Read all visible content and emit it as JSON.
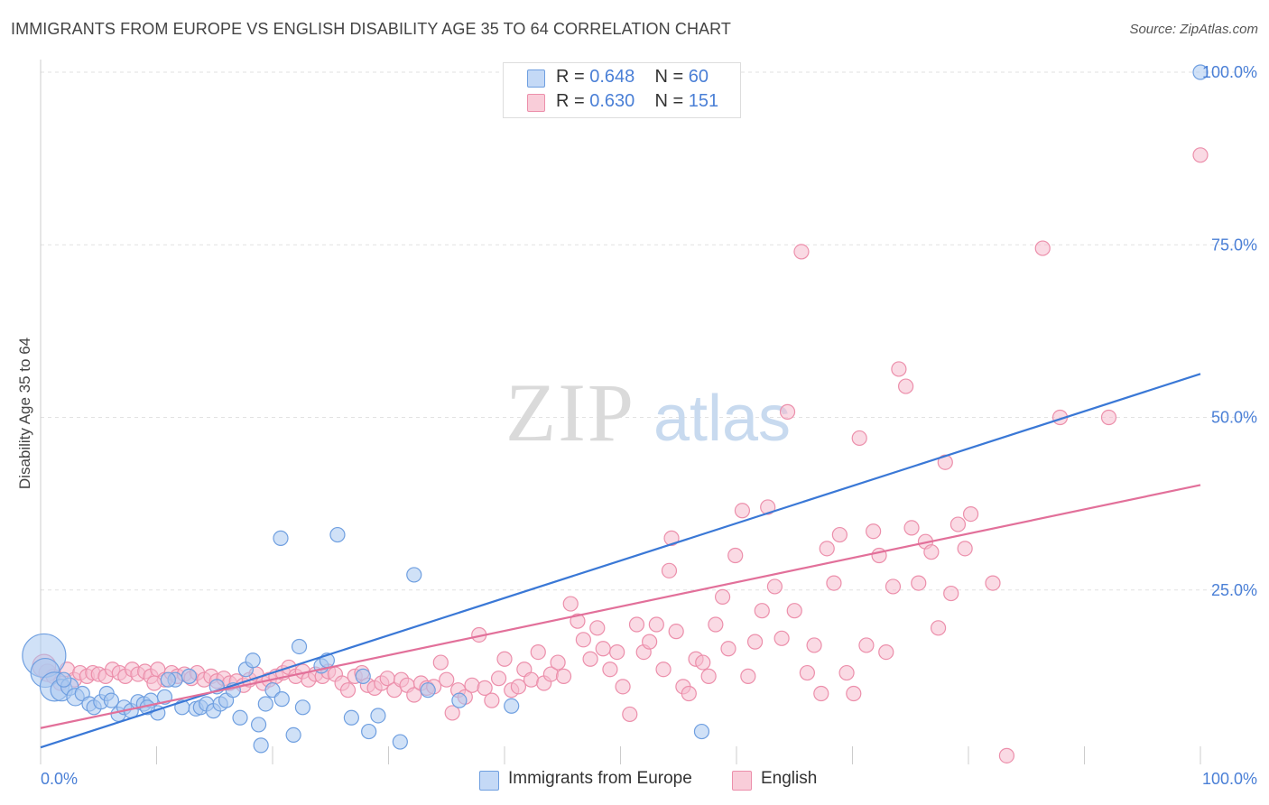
{
  "header": {
    "title": "IMMIGRANTS FROM EUROPE VS ENGLISH DISABILITY AGE 35 TO 64 CORRELATION CHART",
    "source": "Source: ZipAtlas.com"
  },
  "watermark": {
    "zip": "ZIP",
    "atlas": "atlas"
  },
  "legend_top": {
    "rows": [
      {
        "r_label": "R = ",
        "r_value": "0.648",
        "n_label": "N = ",
        "n_value": "60"
      },
      {
        "r_label": "R = ",
        "r_value": "0.630",
        "n_label": "N = ",
        "n_value": "151"
      }
    ]
  },
  "legend_bottom": {
    "items": [
      {
        "label": "Immigrants from Europe"
      },
      {
        "label": "English"
      }
    ]
  },
  "colors": {
    "blue_fill": "#aac8f0",
    "blue_stroke": "#6f9fe0",
    "blue_line": "#3a78d6",
    "pink_fill": "#f6bccd",
    "pink_stroke": "#ec8fab",
    "pink_line": "#e2709a",
    "tick_label": "#4a7fd6",
    "grid": "#e2e2e2"
  },
  "chart_data": {
    "type": "scatter",
    "title": "IMMIGRANTS FROM EUROPE VS ENGLISH DISABILITY AGE 35 TO 64 CORRELATION CHART",
    "xlabel": "",
    "ylabel": "Disability Age 35 to 64",
    "xlim": [
      0,
      100
    ],
    "ylim": [
      0,
      100
    ],
    "x_tick_labels": [
      "0.0%",
      "100.0%"
    ],
    "y_ticks": [
      25,
      50,
      75,
      100
    ],
    "y_tick_labels": [
      "25.0%",
      "50.0%",
      "75.0%",
      "100.0%"
    ],
    "grid": true,
    "legend_position": "top-center",
    "series": [
      {
        "name": "Immigrants from Europe",
        "r": 0.648,
        "n": 60,
        "trendline": {
          "x": [
            0,
            100
          ],
          "y": [
            2.2,
            56.3
          ]
        },
        "points": [
          [
            0.3,
            15.5,
            3
          ],
          [
            0.4,
            13.0,
            2
          ],
          [
            1.2,
            11.0,
            2
          ],
          [
            1.8,
            10.5,
            1.5
          ],
          [
            2.5,
            11.0,
            1.2
          ],
          [
            3.0,
            9.5,
            1.2
          ],
          [
            3.6,
            10.0,
            1
          ],
          [
            4.2,
            8.5,
            1
          ],
          [
            4.6,
            8.0,
            1
          ],
          [
            5.2,
            8.8,
            1
          ],
          [
            5.7,
            10.0,
            1
          ],
          [
            6.1,
            9.0,
            1
          ],
          [
            6.7,
            7.0,
            1
          ],
          [
            7.2,
            8.0,
            1
          ],
          [
            7.8,
            7.5,
            1
          ],
          [
            8.4,
            8.8,
            1
          ],
          [
            8.9,
            8.5,
            1
          ],
          [
            9.5,
            9.0,
            1
          ],
          [
            10.1,
            7.2,
            1
          ],
          [
            10.7,
            9.5,
            1
          ],
          [
            11.6,
            12.0,
            1
          ],
          [
            12.2,
            8.0,
            1
          ],
          [
            12.8,
            12.5,
            1
          ],
          [
            13.4,
            7.8,
            1
          ],
          [
            13.8,
            8.0,
            1
          ],
          [
            14.3,
            8.5,
            1
          ],
          [
            14.9,
            7.5,
            1
          ],
          [
            15.5,
            8.5,
            1
          ],
          [
            16.0,
            9.0,
            1
          ],
          [
            16.6,
            10.5,
            1
          ],
          [
            17.2,
            6.5,
            1
          ],
          [
            17.7,
            13.5,
            1
          ],
          [
            18.3,
            14.8,
            1
          ],
          [
            18.8,
            5.5,
            1
          ],
          [
            19.0,
            2.5,
            1
          ],
          [
            19.4,
            8.5,
            1
          ],
          [
            20.0,
            10.5,
            1
          ],
          [
            20.7,
            32.5,
            1
          ],
          [
            20.8,
            9.2,
            1
          ],
          [
            21.8,
            4.0,
            1
          ],
          [
            22.3,
            16.8,
            1
          ],
          [
            22.6,
            8.0,
            1
          ],
          [
            24.2,
            14.0,
            1
          ],
          [
            24.7,
            14.8,
            1
          ],
          [
            25.6,
            33.0,
            1
          ],
          [
            26.8,
            6.5,
            1
          ],
          [
            27.8,
            12.5,
            1
          ],
          [
            28.3,
            4.5,
            1
          ],
          [
            29.1,
            6.8,
            1
          ],
          [
            31.0,
            3.0,
            1
          ],
          [
            32.2,
            27.2,
            1
          ],
          [
            33.4,
            10.5,
            1
          ],
          [
            36.1,
            9.0,
            1
          ],
          [
            40.6,
            8.2,
            1
          ],
          [
            57.0,
            4.5,
            1
          ],
          [
            100.0,
            100.0,
            1
          ],
          [
            2.0,
            12.0,
            1
          ],
          [
            9.2,
            8.0,
            1
          ],
          [
            15.2,
            11.0,
            1
          ],
          [
            11.0,
            12.0,
            1
          ]
        ]
      },
      {
        "name": "English",
        "r": 0.63,
        "n": 151,
        "trendline": {
          "x": [
            0,
            100
          ],
          "y": [
            5.0,
            40.2
          ]
        },
        "points": [
          [
            0.6,
            13.0,
            1.2
          ],
          [
            1.1,
            12.5,
            1
          ],
          [
            1.7,
            11.5,
            1
          ],
          [
            2.3,
            13.5,
            1
          ],
          [
            2.9,
            12.0,
            1
          ],
          [
            3.4,
            13.0,
            1
          ],
          [
            4.0,
            12.5,
            1
          ],
          [
            4.5,
            13.0,
            1
          ],
          [
            5.0,
            12.8,
            1
          ],
          [
            5.6,
            12.5,
            1
          ],
          [
            6.2,
            13.5,
            1
          ],
          [
            6.8,
            13.0,
            1
          ],
          [
            7.3,
            12.5,
            1
          ],
          [
            7.9,
            13.5,
            1
          ],
          [
            8.4,
            12.8,
            1
          ],
          [
            9.0,
            13.2,
            1
          ],
          [
            9.5,
            12.5,
            1
          ],
          [
            10.1,
            13.5,
            1
          ],
          [
            10.7,
            12.0,
            1
          ],
          [
            11.3,
            13.0,
            1
          ],
          [
            11.8,
            12.5,
            1
          ],
          [
            12.4,
            12.8,
            1
          ],
          [
            13.0,
            12.2,
            1
          ],
          [
            13.5,
            13.0,
            1
          ],
          [
            14.1,
            12.0,
            1
          ],
          [
            14.7,
            12.5,
            1
          ],
          [
            15.2,
            11.8,
            1
          ],
          [
            15.8,
            12.2,
            1
          ],
          [
            16.3,
            11.5,
            1
          ],
          [
            16.9,
            11.8,
            1
          ],
          [
            17.5,
            11.2,
            1
          ],
          [
            18.0,
            12.0,
            1
          ],
          [
            18.6,
            12.8,
            1
          ],
          [
            19.2,
            11.5,
            1
          ],
          [
            19.7,
            12.0,
            1
          ],
          [
            20.3,
            12.5,
            1
          ],
          [
            20.9,
            13.0,
            1
          ],
          [
            21.4,
            13.8,
            1
          ],
          [
            22.0,
            12.5,
            1
          ],
          [
            22.6,
            13.2,
            1
          ],
          [
            23.1,
            12.0,
            1
          ],
          [
            23.7,
            12.8,
            1
          ],
          [
            24.3,
            12.5,
            1
          ],
          [
            24.8,
            13.2,
            1
          ],
          [
            25.4,
            12.8,
            1
          ],
          [
            26.0,
            11.5,
            1
          ],
          [
            26.5,
            10.5,
            1
          ],
          [
            27.1,
            12.5,
            1
          ],
          [
            27.7,
            13.0,
            1
          ],
          [
            28.2,
            11.2,
            1
          ],
          [
            28.8,
            10.8,
            1
          ],
          [
            29.4,
            11.5,
            1
          ],
          [
            29.9,
            12.2,
            1
          ],
          [
            30.5,
            10.5,
            1
          ],
          [
            31.1,
            12.0,
            1
          ],
          [
            31.6,
            11.2,
            1
          ],
          [
            32.2,
            9.8,
            1
          ],
          [
            32.8,
            11.5,
            1
          ],
          [
            33.3,
            10.8,
            1
          ],
          [
            33.9,
            11.0,
            1
          ],
          [
            34.5,
            14.5,
            1
          ],
          [
            35.0,
            12.0,
            1
          ],
          [
            35.5,
            7.2,
            1
          ],
          [
            36.0,
            10.5,
            1
          ],
          [
            36.6,
            9.5,
            1
          ],
          [
            37.2,
            11.2,
            1
          ],
          [
            37.8,
            18.5,
            1
          ],
          [
            38.3,
            10.8,
            1
          ],
          [
            38.9,
            9.0,
            1
          ],
          [
            39.5,
            12.2,
            1
          ],
          [
            40.0,
            15.0,
            1
          ],
          [
            40.6,
            10.5,
            1
          ],
          [
            41.2,
            11.0,
            1
          ],
          [
            41.7,
            13.5,
            1
          ],
          [
            42.3,
            12.0,
            1
          ],
          [
            42.9,
            16.0,
            1
          ],
          [
            43.4,
            11.5,
            1
          ],
          [
            44.0,
            12.8,
            1
          ],
          [
            44.6,
            14.5,
            1
          ],
          [
            45.1,
            12.5,
            1
          ],
          [
            45.7,
            23.0,
            1
          ],
          [
            46.3,
            20.5,
            1
          ],
          [
            46.8,
            17.8,
            1
          ],
          [
            47.4,
            15.0,
            1
          ],
          [
            48.0,
            19.5,
            1
          ],
          [
            48.5,
            16.5,
            1
          ],
          [
            49.1,
            13.5,
            1
          ],
          [
            49.7,
            16.0,
            1
          ],
          [
            50.2,
            11.0,
            1
          ],
          [
            50.8,
            7.0,
            1
          ],
          [
            51.4,
            20.0,
            1
          ],
          [
            52.0,
            16.0,
            1
          ],
          [
            52.5,
            17.5,
            1
          ],
          [
            53.1,
            20.0,
            1
          ],
          [
            53.7,
            13.5,
            1
          ],
          [
            54.2,
            27.8,
            1
          ],
          [
            54.4,
            32.5,
            1
          ],
          [
            54.8,
            19.0,
            1
          ],
          [
            55.4,
            11.0,
            1
          ],
          [
            55.9,
            10.0,
            1
          ],
          [
            56.5,
            15.0,
            1
          ],
          [
            57.1,
            14.5,
            1
          ],
          [
            57.6,
            12.5,
            1
          ],
          [
            58.2,
            20.0,
            1
          ],
          [
            58.8,
            24.0,
            1
          ],
          [
            59.3,
            16.5,
            1
          ],
          [
            59.9,
            30.0,
            1
          ],
          [
            60.5,
            36.5,
            1
          ],
          [
            61.0,
            12.5,
            1
          ],
          [
            61.6,
            17.5,
            1
          ],
          [
            62.2,
            22.0,
            1
          ],
          [
            62.7,
            37.0,
            1
          ],
          [
            63.3,
            25.5,
            1
          ],
          [
            63.9,
            18.0,
            1
          ],
          [
            64.4,
            50.8,
            1
          ],
          [
            65.0,
            22.0,
            1
          ],
          [
            65.6,
            74.0,
            1
          ],
          [
            66.1,
            13.0,
            1
          ],
          [
            66.7,
            17.0,
            1
          ],
          [
            67.3,
            10.0,
            1
          ],
          [
            67.8,
            31.0,
            1
          ],
          [
            68.4,
            26.0,
            1
          ],
          [
            68.9,
            33.0,
            1
          ],
          [
            69.5,
            13.0,
            1
          ],
          [
            70.1,
            10.0,
            1
          ],
          [
            70.6,
            47.0,
            1
          ],
          [
            71.2,
            17.0,
            1
          ],
          [
            71.8,
            33.5,
            1
          ],
          [
            72.3,
            30.0,
            1
          ],
          [
            72.9,
            16.0,
            1
          ],
          [
            73.5,
            25.5,
            1
          ],
          [
            74.0,
            57.0,
            1
          ],
          [
            74.6,
            54.5,
            1
          ],
          [
            75.1,
            34.0,
            1
          ],
          [
            75.7,
            26.0,
            1
          ],
          [
            76.3,
            32.0,
            1
          ],
          [
            76.8,
            30.5,
            1
          ],
          [
            77.4,
            19.5,
            1
          ],
          [
            78.0,
            43.5,
            1
          ],
          [
            78.5,
            24.5,
            1
          ],
          [
            79.1,
            34.5,
            1
          ],
          [
            79.7,
            31.0,
            1
          ],
          [
            80.2,
            36.0,
            1
          ],
          [
            82.1,
            26.0,
            1
          ],
          [
            83.3,
            1.0,
            1
          ],
          [
            86.4,
            74.5,
            1
          ],
          [
            87.9,
            50.0,
            1
          ],
          [
            92.1,
            50.0,
            1
          ],
          [
            100.0,
            88.0,
            1
          ],
          [
            9.8,
            11.5,
            1
          ],
          [
            0.3,
            14.0,
            1.6
          ]
        ]
      }
    ]
  }
}
